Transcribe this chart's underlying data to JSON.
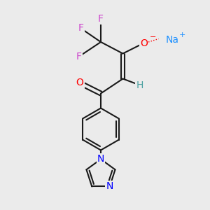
{
  "background_color": "#ebebeb",
  "bond_color": "#1a1a1a",
  "bond_width": 1.5,
  "atom_colors": {
    "F": "#cc44cc",
    "O": "#ff0000",
    "H": "#4aa0a0",
    "N": "#0000ff",
    "Na": "#1e90ff"
  },
  "font_size_atoms": 10,
  "font_size_super": 8
}
